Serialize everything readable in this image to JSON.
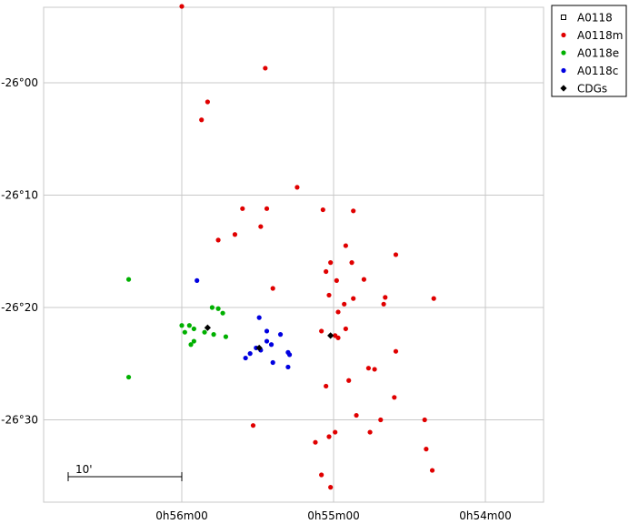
{
  "chart_data": {
    "type": "scatter",
    "title": "",
    "xlabel": "",
    "ylabel": "",
    "x_axis": {
      "unit": "RA minutes (0h mm)",
      "reversed": true,
      "range": [
        53.6,
        56.9
      ]
    },
    "y_axis": {
      "unit": "Dec arcmin offset from -26°00'",
      "range": [
        -37.5,
        6.8
      ]
    },
    "x_ticks": [
      {
        "value": 56,
        "label": "0h56m00"
      },
      {
        "value": 55,
        "label": "0h55m00"
      },
      {
        "value": 54,
        "label": "0h54m00"
      }
    ],
    "y_ticks": [
      {
        "value": 0,
        "label": "-26°00"
      },
      {
        "value": -10,
        "label": "-26°10"
      },
      {
        "value": -20,
        "label": "-26°20"
      },
      {
        "value": -30,
        "label": "-26°30"
      }
    ],
    "grid": true,
    "legend_position": "top-right-outside",
    "scale_bar": {
      "label": "10'",
      "length_arcmin": 10
    },
    "series": [
      {
        "name": "A0118",
        "color": "#000000",
        "marker": "open-square",
        "points": []
      },
      {
        "name": "A0118m",
        "color": "#e00000",
        "marker": "circle",
        "points": [
          [
            56.0,
            6.8
          ],
          [
            55.45,
            1.3
          ],
          [
            55.83,
            -1.7
          ],
          [
            55.87,
            -3.3
          ],
          [
            55.24,
            -9.3
          ],
          [
            55.6,
            -11.2
          ],
          [
            55.44,
            -11.2
          ],
          [
            55.07,
            -11.3
          ],
          [
            54.87,
            -11.4
          ],
          [
            55.48,
            -12.8
          ],
          [
            55.65,
            -13.5
          ],
          [
            55.76,
            -14.0
          ],
          [
            54.92,
            -14.5
          ],
          [
            54.59,
            -15.3
          ],
          [
            55.02,
            -16.0
          ],
          [
            54.88,
            -16.0
          ],
          [
            55.05,
            -16.8
          ],
          [
            54.8,
            -17.5
          ],
          [
            54.98,
            -17.6
          ],
          [
            55.4,
            -18.3
          ],
          [
            55.03,
            -18.9
          ],
          [
            54.87,
            -19.2
          ],
          [
            54.93,
            -19.7
          ],
          [
            54.66,
            -19.1
          ],
          [
            54.34,
            -19.2
          ],
          [
            54.67,
            -19.7
          ],
          [
            54.97,
            -20.4
          ],
          [
            54.92,
            -21.9
          ],
          [
            55.08,
            -22.1
          ],
          [
            54.99,
            -22.5
          ],
          [
            54.97,
            -22.7
          ],
          [
            54.59,
            -23.9
          ],
          [
            54.77,
            -25.4
          ],
          [
            54.73,
            -25.5
          ],
          [
            54.9,
            -26.5
          ],
          [
            55.05,
            -27.0
          ],
          [
            54.6,
            -28.0
          ],
          [
            54.85,
            -29.6
          ],
          [
            54.69,
            -30.0
          ],
          [
            54.4,
            -30.0
          ],
          [
            55.53,
            -30.5
          ],
          [
            54.76,
            -31.1
          ],
          [
            54.99,
            -31.1
          ],
          [
            55.03,
            -31.5
          ],
          [
            55.12,
            -32.0
          ],
          [
            54.39,
            -32.6
          ],
          [
            54.35,
            -34.5
          ],
          [
            55.08,
            -34.9
          ],
          [
            55.02,
            -36.0
          ]
        ]
      },
      {
        "name": "A0118e",
        "color": "#00b000",
        "marker": "circle",
        "points": [
          [
            56.35,
            -17.5
          ],
          [
            55.8,
            -20.0
          ],
          [
            55.76,
            -20.1
          ],
          [
            55.73,
            -20.5
          ],
          [
            56.0,
            -21.6
          ],
          [
            55.95,
            -21.6
          ],
          [
            55.92,
            -21.9
          ],
          [
            55.98,
            -22.2
          ],
          [
            55.85,
            -22.2
          ],
          [
            55.79,
            -22.4
          ],
          [
            55.71,
            -22.6
          ],
          [
            55.92,
            -23.0
          ],
          [
            55.94,
            -23.3
          ],
          [
            56.35,
            -26.2
          ]
        ]
      },
      {
        "name": "A0118c",
        "color": "#0000e0",
        "marker": "circle",
        "points": [
          [
            55.9,
            -17.6
          ],
          [
            55.49,
            -20.9
          ],
          [
            55.44,
            -22.1
          ],
          [
            55.35,
            -22.4
          ],
          [
            55.44,
            -23.0
          ],
          [
            55.41,
            -23.3
          ],
          [
            55.51,
            -23.6
          ],
          [
            55.48,
            -23.8
          ],
          [
            55.3,
            -24.0
          ],
          [
            55.55,
            -24.1
          ],
          [
            55.29,
            -24.2
          ],
          [
            55.58,
            -24.5
          ],
          [
            55.4,
            -24.9
          ],
          [
            55.3,
            -25.3
          ]
        ]
      },
      {
        "name": "CDGs",
        "color": "#000000",
        "marker": "diamond",
        "points": [
          [
            55.83,
            -21.8
          ],
          [
            55.49,
            -23.6
          ],
          [
            55.02,
            -22.5
          ]
        ]
      }
    ]
  }
}
